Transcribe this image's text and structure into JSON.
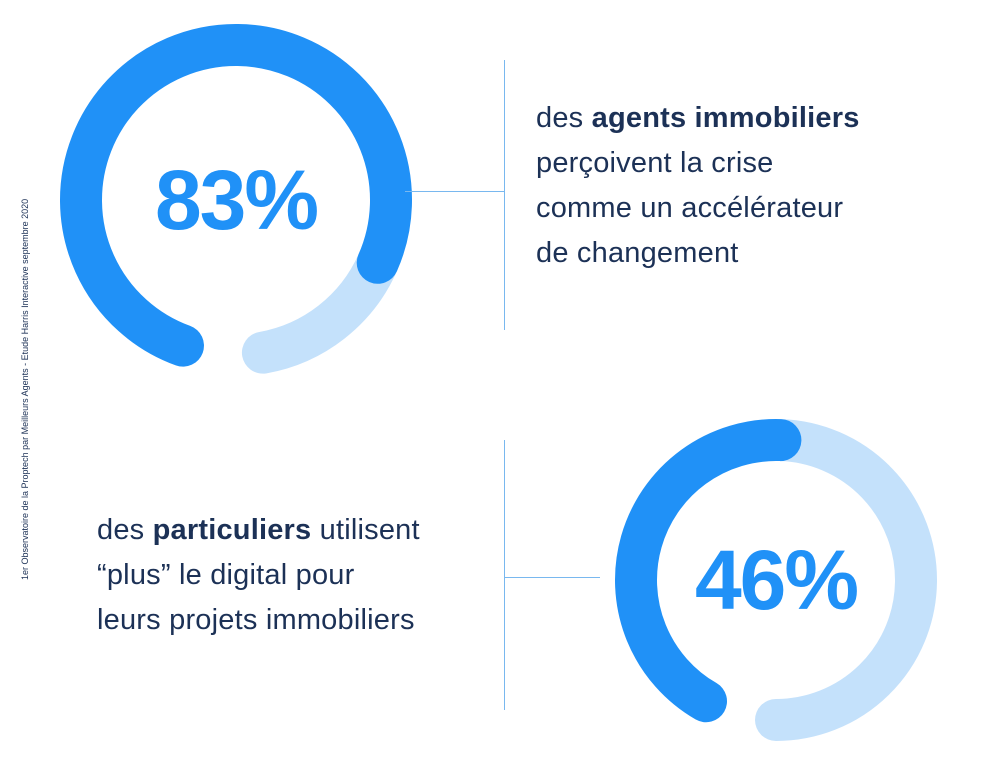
{
  "source_note": "1er Observatoire de la Proptech par Meilleurs Agents - Etude Harris Interactive septembre 2020",
  "colors": {
    "primary": "#2091f7",
    "light": "#c4e1fb",
    "text": "#1c3156",
    "connector": "#79b8ef"
  },
  "chart_data": [
    {
      "type": "pie",
      "value": 83,
      "unit": "%",
      "value_label": "83%",
      "description": {
        "lines": [
          [
            {
              "text": "des ",
              "bold": false
            },
            {
              "text": "agents immobiliers",
              "bold": true
            }
          ],
          [
            {
              "text": "perçoivent la crise",
              "bold": false
            }
          ],
          [
            {
              "text": "comme un accélérateur",
              "bold": false
            }
          ],
          [
            {
              "text": "de changement",
              "bold": false
            }
          ]
        ]
      }
    },
    {
      "type": "pie",
      "value": 46,
      "unit": "%",
      "value_label": "46%",
      "description": {
        "lines": [
          [
            {
              "text": "des ",
              "bold": false
            },
            {
              "text": "particuliers",
              "bold": true
            },
            {
              "text": " utilisent",
              "bold": false
            }
          ],
          [
            {
              "text": "“plus” le digital pour",
              "bold": false
            }
          ],
          [
            {
              "text": "leurs projets immobiliers",
              "bold": false
            }
          ]
        ]
      }
    }
  ]
}
